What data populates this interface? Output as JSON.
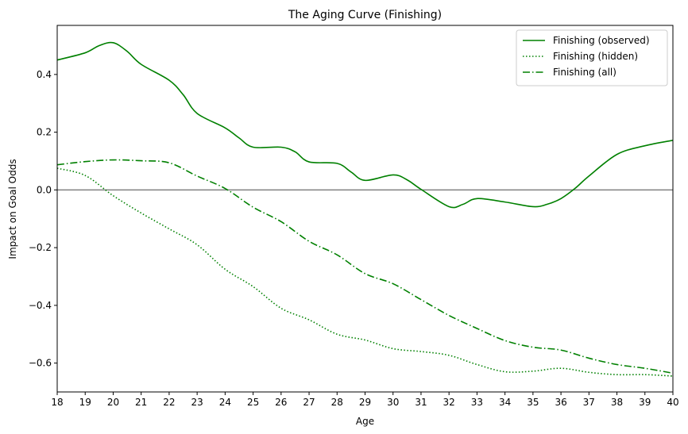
{
  "chart_data": {
    "type": "line",
    "title": "The Aging Curve (Finishing)",
    "xlabel": "Age",
    "ylabel": "Impact on Goal Odds",
    "xlim": [
      18,
      40
    ],
    "ylim": [
      -0.7,
      0.57
    ],
    "xticks": [
      18,
      19,
      20,
      21,
      22,
      23,
      24,
      25,
      26,
      27,
      28,
      29,
      30,
      31,
      32,
      33,
      34,
      35,
      36,
      37,
      38,
      39,
      40
    ],
    "yticks": [
      -0.6,
      -0.4,
      -0.2,
      0.0,
      0.2,
      0.4
    ],
    "ytick_labels": [
      "−0.6",
      "−0.4",
      "−0.2",
      "0.0",
      "0.2",
      "0.4"
    ],
    "reference_line": 0.0,
    "grid": false,
    "legend_position": "top-right",
    "line_color": "#008000",
    "reference_color": "#808080",
    "series": [
      {
        "name": "Finishing (observed)",
        "style": "solid",
        "x": [
          18,
          19,
          19.5,
          20,
          20.5,
          21,
          22,
          22.5,
          23,
          24,
          24.5,
          25,
          26,
          26.5,
          27,
          28,
          28.5,
          29,
          30,
          30.5,
          31,
          32,
          32.5,
          33,
          34,
          35,
          35.5,
          36,
          36.5,
          37,
          38,
          39,
          40
        ],
        "y": [
          0.45,
          0.475,
          0.5,
          0.51,
          0.48,
          0.435,
          0.38,
          0.33,
          0.265,
          0.215,
          0.18,
          0.148,
          0.148,
          0.132,
          0.097,
          0.092,
          0.062,
          0.033,
          0.052,
          0.035,
          0.002,
          -0.058,
          -0.05,
          -0.03,
          -0.042,
          -0.058,
          -0.05,
          -0.03,
          0.005,
          0.048,
          0.123,
          0.153,
          0.172
        ]
      },
      {
        "name": "Finishing (hidden)",
        "style": "dotted",
        "x": [
          18,
          19,
          20,
          21,
          22,
          23,
          24,
          25,
          26,
          27,
          28,
          29,
          30,
          31,
          32,
          33,
          34,
          35,
          36,
          37,
          38,
          39,
          40
        ],
        "y": [
          0.075,
          0.05,
          -0.02,
          -0.08,
          -0.135,
          -0.19,
          -0.275,
          -0.335,
          -0.41,
          -0.45,
          -0.5,
          -0.52,
          -0.55,
          -0.56,
          -0.573,
          -0.605,
          -0.63,
          -0.628,
          -0.618,
          -0.632,
          -0.64,
          -0.64,
          -0.645
        ]
      },
      {
        "name": "Finishing (all)",
        "style": "dashdot",
        "x": [
          18,
          19,
          20,
          21,
          22,
          23,
          24,
          25,
          26,
          27,
          28,
          29,
          30,
          31,
          32,
          33,
          34,
          35,
          36,
          37,
          38,
          39,
          40
        ],
        "y": [
          0.087,
          0.098,
          0.104,
          0.101,
          0.094,
          0.048,
          0.005,
          -0.06,
          -0.11,
          -0.178,
          -0.225,
          -0.29,
          -0.325,
          -0.38,
          -0.435,
          -0.48,
          -0.522,
          -0.545,
          -0.555,
          -0.583,
          -0.605,
          -0.618,
          -0.635
        ]
      }
    ]
  }
}
